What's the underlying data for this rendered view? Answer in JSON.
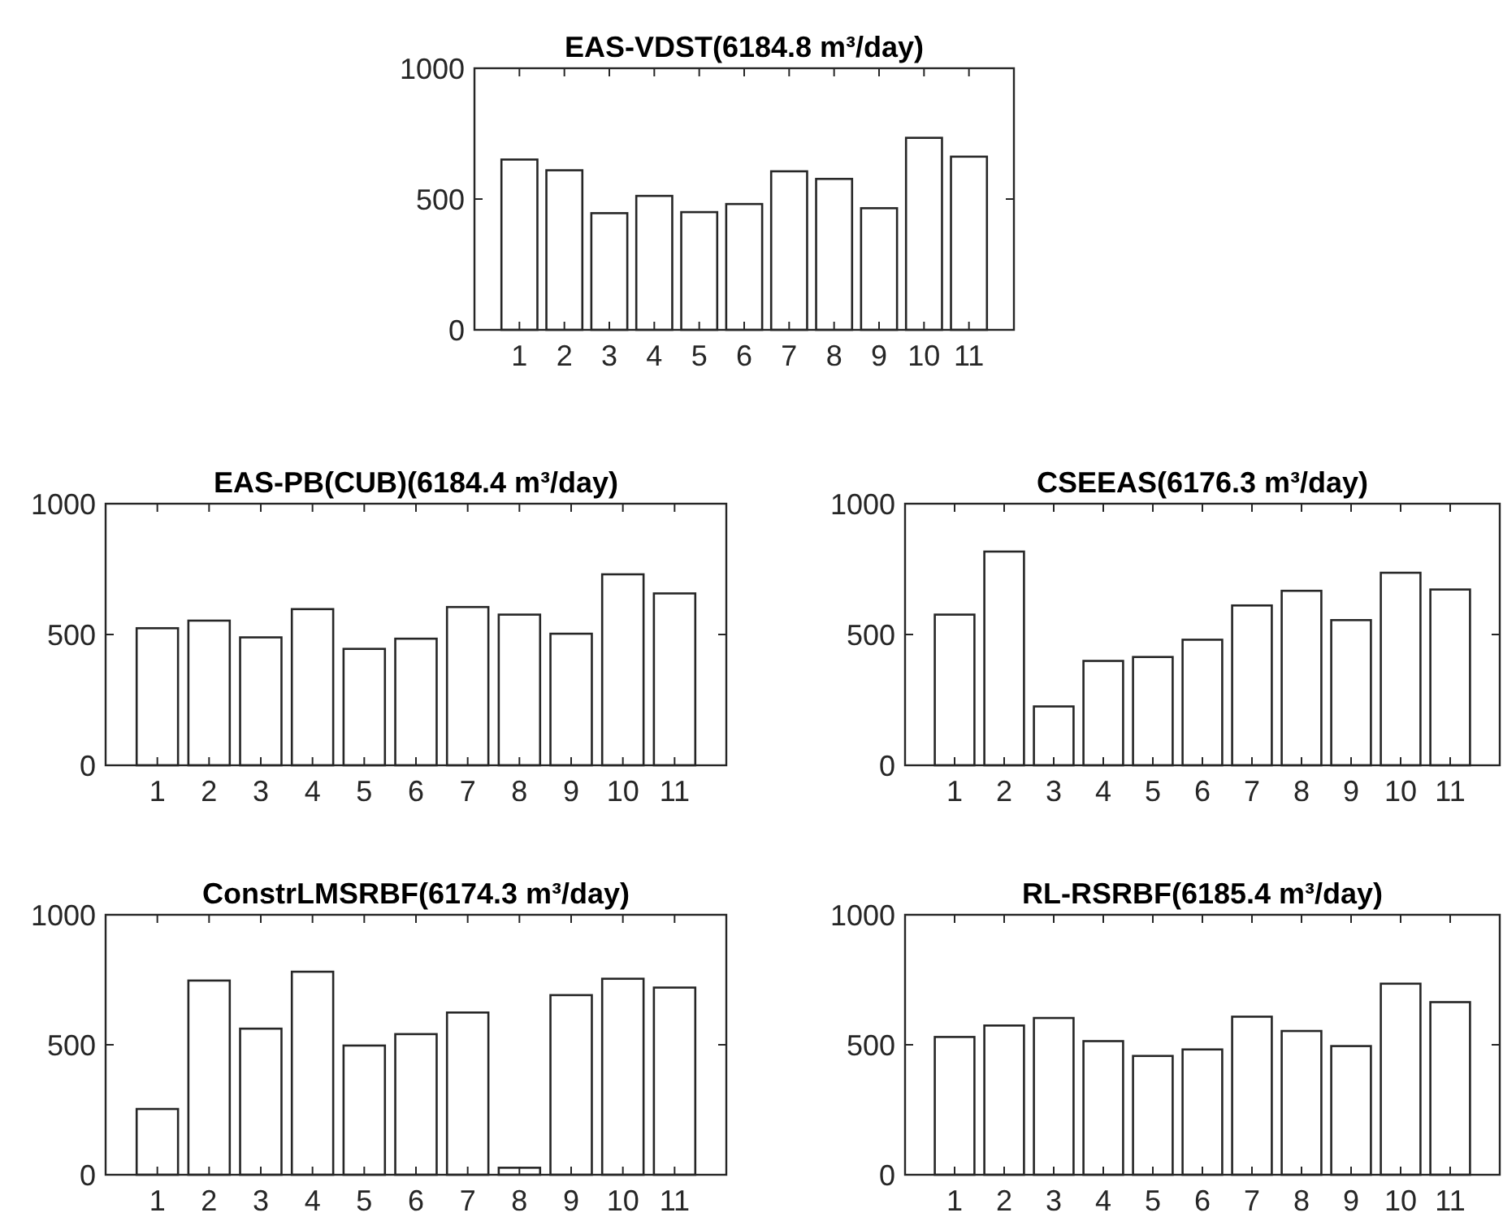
{
  "chart_data": [
    {
      "type": "bar",
      "title": "EAS-VDST(6184.8 m³/day)",
      "categories": [
        "1",
        "2",
        "3",
        "4",
        "5",
        "6",
        "7",
        "8",
        "9",
        "10",
        "11"
      ],
      "values": [
        651,
        610,
        446,
        512,
        450,
        481,
        606,
        577,
        465,
        734,
        662
      ],
      "color": "#ffffff",
      "ylim": [
        0,
        1000
      ],
      "yticks": [
        0,
        500,
        1000
      ],
      "grid": false
    },
    {
      "type": "bar",
      "title": "EAS-PB(CUB)(6184.4 m³/day)",
      "categories": [
        "1",
        "2",
        "3",
        "4",
        "5",
        "6",
        "7",
        "8",
        "9",
        "10",
        "11"
      ],
      "values": [
        524,
        553,
        489,
        597,
        445,
        484,
        605,
        576,
        503,
        730,
        657
      ],
      "color": "#ffffff",
      "ylim": [
        0,
        1000
      ],
      "yticks": [
        0,
        500,
        1000
      ],
      "grid": false
    },
    {
      "type": "bar",
      "title": "CSEEAS(6176.3 m³/day)",
      "categories": [
        "1",
        "2",
        "3",
        "4",
        "5",
        "6",
        "7",
        "8",
        "9",
        "10",
        "11"
      ],
      "values": [
        576,
        817,
        225,
        399,
        414,
        480,
        611,
        667,
        555,
        736,
        672
      ],
      "color": "#ffffff",
      "ylim": [
        0,
        1000
      ],
      "yticks": [
        0,
        500,
        1000
      ],
      "grid": false
    },
    {
      "type": "bar",
      "title": "ConstrLMSRBF(6174.3 m³/day)",
      "categories": [
        "1",
        "2",
        "3",
        "4",
        "5",
        "6",
        "7",
        "8",
        "9",
        "10",
        "11"
      ],
      "values": [
        253,
        747,
        562,
        781,
        497,
        541,
        624,
        27,
        691,
        754,
        720
      ],
      "color": "#ffffff",
      "ylim": [
        0,
        1000
      ],
      "yticks": [
        0,
        500,
        1000
      ],
      "grid": false
    },
    {
      "type": "bar",
      "title": "RL-RSRBF(6185.4 m³/day)",
      "categories": [
        "1",
        "2",
        "3",
        "4",
        "5",
        "6",
        "7",
        "8",
        "9",
        "10",
        "11"
      ],
      "values": [
        530,
        574,
        603,
        514,
        457,
        482,
        608,
        553,
        495,
        735,
        664
      ],
      "color": "#ffffff",
      "ylim": [
        0,
        1000
      ],
      "yticks": [
        0,
        500,
        1000
      ],
      "grid": false
    }
  ]
}
